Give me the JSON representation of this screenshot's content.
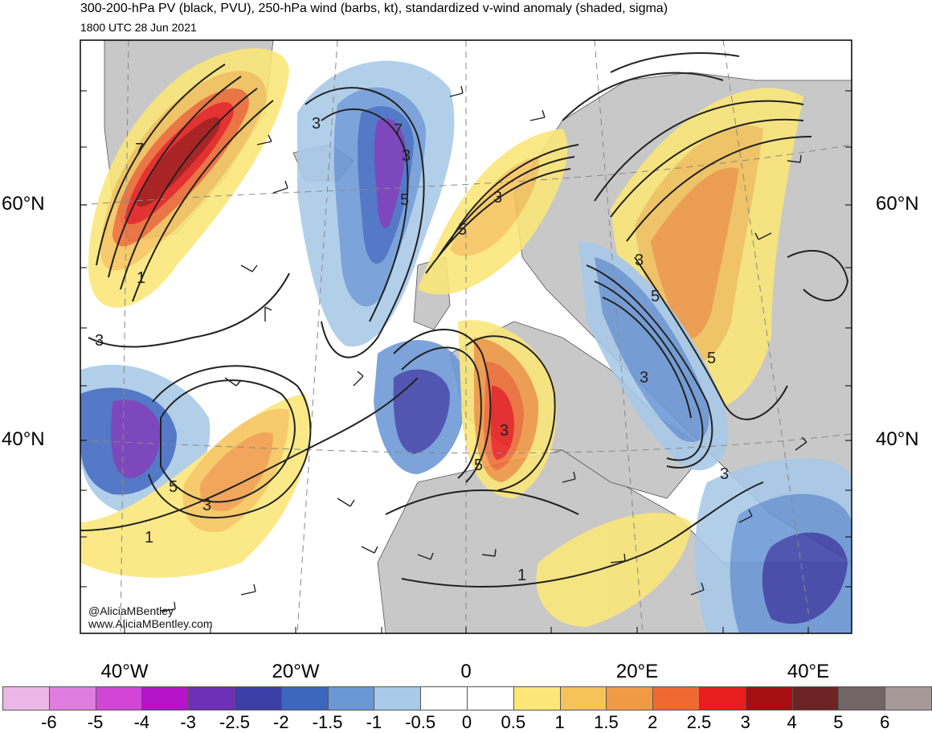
{
  "header": {
    "title": "300-200-hPa PV (black, PVU), 250-hPa wind (barbs, kt), standardized v-wind anomaly (shaded, sigma)",
    "valid_time": "1800 UTC 28 Jun 2021"
  },
  "axes": {
    "lat_left": [
      "60°N",
      "40°N"
    ],
    "lat_right": [
      "60°N",
      "40°N"
    ],
    "lon": [
      "40°W",
      "20°W",
      "0",
      "20°E",
      "40°E"
    ]
  },
  "contour_labels": [
    "3",
    "5",
    "1",
    "3",
    "5",
    "3",
    "5",
    "5",
    "3",
    "5",
    "3",
    "3",
    "5",
    "3",
    "1",
    "1",
    "3",
    "3",
    "7",
    "7"
  ],
  "credits": {
    "handle": "@AliciaMBentley",
    "website": "www.AliciaMBentley.com"
  },
  "colorbar": {
    "labels": [
      "-6",
      "-5",
      "-4",
      "-3",
      "-2.5",
      "-2",
      "-1.5",
      "-1",
      "-0.5",
      "0",
      "0.5",
      "1",
      "1.5",
      "2",
      "2.5",
      "3",
      "4",
      "5",
      "6"
    ],
    "colors": [
      "#ebb8e8",
      "#e07de0",
      "#d146d6",
      "#b514c9",
      "#6d2fb5",
      "#3c3fa6",
      "#3d67bf",
      "#6b97d6",
      "#a8c9e8",
      "#ffffff",
      "#ffffff",
      "#fbe777",
      "#f5c35a",
      "#f19a45",
      "#ef6a33",
      "#e81d1d",
      "#a50f0f",
      "#6d2323",
      "#726565",
      "#a69a98"
    ]
  },
  "colors": {
    "land": "#c8c8c8",
    "contour": "#222222"
  }
}
